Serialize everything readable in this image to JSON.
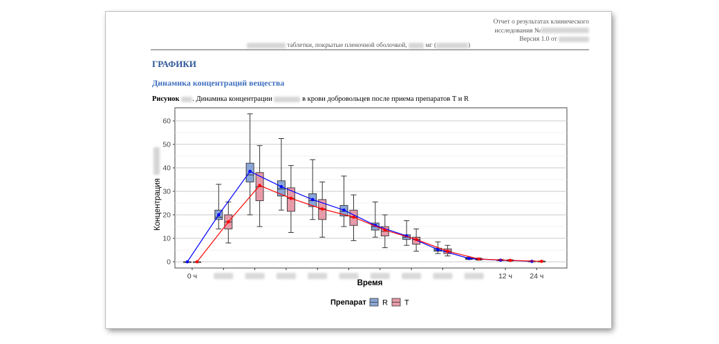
{
  "header": {
    "line1": "Отчет о результатах клинического",
    "line2": "исследования №",
    "line3": "Версия 1.0 от",
    "subtitle_text": "таблетки, покрытые пленочной оболочкой,",
    "subtitle_unit": "мг ("
  },
  "section_title": "ГРАФИКИ",
  "subsection_title": "Динамика концентраций вещества",
  "caption": {
    "label": "Рисунок",
    "text1": "Динамика концентрации",
    "text2": "в крови добровольцев после приема препаратов T и R"
  },
  "chart_data": {
    "type": "box",
    "xlabel": "Время",
    "ylabel": "Концентрация",
    "ylim": [
      0,
      65
    ],
    "yticks": [
      0,
      10,
      20,
      30,
      40,
      50,
      60
    ],
    "categories": [
      "0 ч",
      "",
      "",
      "",
      "",
      "",
      "",
      "",
      "",
      "",
      "12 ч",
      "24 ч"
    ],
    "legend": {
      "title": "Препарат",
      "position": "bottom"
    },
    "series": [
      {
        "name": "R",
        "color": "#0000ff",
        "fill": "#8aa6d6",
        "mean": [
          0,
          20,
          38.5,
          32,
          26.5,
          22,
          15.5,
          11,
          5.2,
          1.4,
          0.7,
          0.2
        ],
        "boxes": [
          {
            "min": 0,
            "q1": 0,
            "median": 0,
            "q3": 0,
            "max": 0
          },
          {
            "min": 14,
            "q1": 18,
            "median": 19,
            "q3": 22,
            "max": 33
          },
          {
            "min": 20,
            "q1": 34,
            "median": 37,
            "q3": 42,
            "max": 63
          },
          {
            "min": 22,
            "q1": 28,
            "median": 31,
            "q3": 34.5,
            "max": 52.5
          },
          {
            "min": 18,
            "q1": 23.5,
            "median": 26,
            "q3": 29,
            "max": 43.5
          },
          {
            "min": 15,
            "q1": 19.5,
            "median": 21.5,
            "q3": 24,
            "max": 36.5
          },
          {
            "min": 10.5,
            "q1": 13.5,
            "median": 15,
            "q3": 16.5,
            "max": 25.5
          },
          {
            "min": 7,
            "q1": 9.5,
            "median": 10.5,
            "q3": 11.5,
            "max": 17.5
          },
          {
            "min": 3.5,
            "q1": 4.5,
            "median": 5,
            "q3": 5.8,
            "max": 8.5
          },
          {
            "min": 1,
            "q1": 1.1,
            "median": 1.3,
            "q3": 1.6,
            "max": 2
          },
          {
            "min": 0.5,
            "q1": 0.6,
            "median": 0.7,
            "q3": 0.8,
            "max": 1
          },
          {
            "min": 0,
            "q1": 0.1,
            "median": 0.2,
            "q3": 0.3,
            "max": 0.4
          }
        ]
      },
      {
        "name": "T",
        "color": "#ff0000",
        "fill": "#e79aa8",
        "mean": [
          0,
          17,
          32.5,
          27,
          22.5,
          19,
          13.5,
          9.5,
          4.5,
          1.2,
          0.6,
          0.2
        ],
        "boxes": [
          {
            "min": 0,
            "q1": 0,
            "median": 0,
            "q3": 0,
            "max": 0
          },
          {
            "min": 8,
            "q1": 14,
            "median": 17,
            "q3": 20,
            "max": 25.5
          },
          {
            "min": 15,
            "q1": 26,
            "median": 32,
            "q3": 38,
            "max": 49.5
          },
          {
            "min": 12.5,
            "q1": 21.5,
            "median": 27,
            "q3": 31.5,
            "max": 41
          },
          {
            "min": 10.5,
            "q1": 18,
            "median": 22.5,
            "q3": 26.5,
            "max": 34
          },
          {
            "min": 9,
            "q1": 15.5,
            "median": 19,
            "q3": 22,
            "max": 28.5
          },
          {
            "min": 6,
            "q1": 11,
            "median": 13,
            "q3": 15,
            "max": 20
          },
          {
            "min": 4.5,
            "q1": 7.5,
            "median": 9.5,
            "q3": 10.5,
            "max": 14
          },
          {
            "min": 2.5,
            "q1": 3.5,
            "median": 4.5,
            "q3": 5.5,
            "max": 7
          },
          {
            "min": 0.7,
            "q1": 0.9,
            "median": 1.1,
            "q3": 1.3,
            "max": 1.6
          },
          {
            "min": 0.3,
            "q1": 0.5,
            "median": 0.6,
            "q3": 0.7,
            "max": 0.9
          },
          {
            "min": 0,
            "q1": 0.05,
            "median": 0.15,
            "q3": 0.25,
            "max": 0.35
          }
        ]
      }
    ]
  }
}
